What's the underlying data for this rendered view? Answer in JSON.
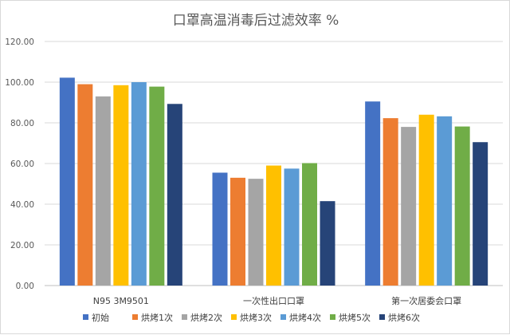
{
  "chart_data": {
    "type": "bar",
    "title": "口罩高温消毒后过滤效率 %",
    "xlabel": "",
    "ylabel": "",
    "ylim": [
      0,
      120
    ],
    "yticks": [
      "0.00",
      "20.00",
      "40.00",
      "60.00",
      "80.00",
      "100.00",
      "120.00"
    ],
    "grid": true,
    "legend_position": "bottom",
    "categories": [
      "N95 3M9501",
      "一次性出口口罩",
      "第一次居委会口罩"
    ],
    "series": [
      {
        "name": "初始",
        "color": "#4472C4",
        "values": [
          102.2,
          55.5,
          90.5
        ]
      },
      {
        "name": "烘烤1次",
        "color": "#ED7D31",
        "values": [
          99.0,
          53.0,
          82.3
        ]
      },
      {
        "name": "烘烤2次",
        "color": "#A5A5A5",
        "values": [
          93.0,
          52.5,
          78.0
        ]
      },
      {
        "name": "烘烤3次",
        "color": "#FFC000",
        "values": [
          98.5,
          59.0,
          84.0
        ]
      },
      {
        "name": "烘烤4次",
        "color": "#5B9BD5",
        "values": [
          100.0,
          57.5,
          83.2
        ]
      },
      {
        "name": "烘烤5次",
        "color": "#70AD47",
        "values": [
          97.8,
          60.2,
          78.2
        ]
      },
      {
        "name": "烘烤6次",
        "color": "#264478",
        "values": [
          89.3,
          41.5,
          70.5
        ]
      }
    ]
  }
}
